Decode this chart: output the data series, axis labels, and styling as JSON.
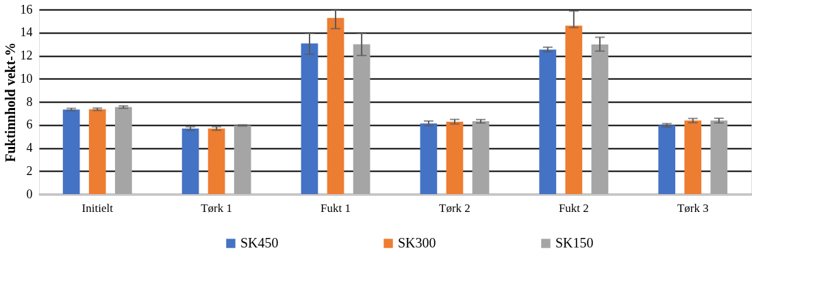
{
  "chart_data": {
    "type": "bar",
    "ylabel": "Fuktinnhold vekt-%",
    "categories": [
      "Initielt",
      "Tørk 1",
      "Fukt 1",
      "Tørk 2",
      "Fukt 2",
      "Tørk 3"
    ],
    "series": [
      {
        "name": "SK450",
        "color": "#4472c4",
        "values": [
          7.34,
          5.69,
          13.06,
          6.14,
          12.54,
          5.97
        ],
        "errors": [
          0.1,
          0.15,
          0.93,
          0.2,
          0.2,
          0.15
        ]
      },
      {
        "name": "SK300",
        "color": "#ed7d31",
        "values": [
          7.36,
          5.69,
          15.27,
          6.28,
          14.61,
          6.38
        ],
        "errors": [
          0.1,
          0.15,
          [
            14.35,
            16.0
          ],
          0.2,
          [
            14.44,
            15.87
          ],
          0.18
        ]
      },
      {
        "name": "SK150",
        "color": "#a5a5a5",
        "values": [
          7.55,
          5.96,
          13.0,
          6.32,
          12.98,
          6.38
        ],
        "errors": [
          0.1,
          0.05,
          0.98,
          0.15,
          [
            12.4,
            13.6
          ],
          0.2
        ]
      }
    ],
    "ylim": [
      0,
      16
    ],
    "yticks": [
      0,
      2,
      4,
      6,
      8,
      10,
      12,
      14,
      16
    ],
    "grid": "y",
    "legend": "bottom"
  }
}
